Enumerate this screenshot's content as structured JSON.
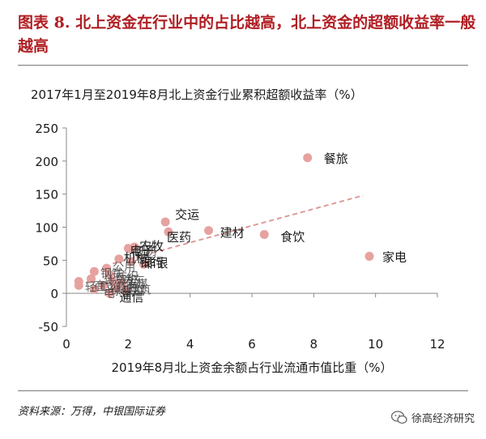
{
  "figure": {
    "title": "图表 8. 北上资金在行业中的占比越高，北上资金的超额收益率一般越高",
    "source": "资料来源：万得，中银国际证券",
    "watermark": "徐高经济研究"
  },
  "colors": {
    "title": "#b01e23",
    "point": "#e6a2a0",
    "trend": "#dc9a97",
    "axis": "#888888"
  },
  "chart_data": {
    "type": "scatter",
    "title": "2017年1月至2019年8月北上资金行业累积超额收益率（%）",
    "xlabel": "2019年8月北上资金余额占行业流通市值比重（%）",
    "ylabel": "",
    "xlim": [
      0,
      12
    ],
    "ylim": [
      -50,
      250
    ],
    "xticks": [
      0,
      2,
      4,
      6,
      8,
      10,
      12
    ],
    "yticks": [
      -50,
      0,
      50,
      100,
      150,
      200,
      250
    ],
    "grid": false,
    "trendline": {
      "x": [
        1.5,
        9.6
      ],
      "y": [
        45,
        148
      ]
    },
    "points": [
      {
        "x": 7.8,
        "y": 205,
        "label": "餐旅"
      },
      {
        "x": 9.8,
        "y": 56,
        "label": "家电"
      },
      {
        "x": 6.4,
        "y": 89,
        "label": "食饮"
      },
      {
        "x": 3.2,
        "y": 108,
        "label": "交运"
      },
      {
        "x": 3.3,
        "y": 93,
        "label": "医药"
      },
      {
        "x": 4.6,
        "y": 95,
        "label": "建材"
      },
      {
        "x": 2.2,
        "y": 70,
        "label": "农牧"
      },
      {
        "x": 2.0,
        "y": 68,
        "label": "电子"
      },
      {
        "x": 1.7,
        "y": 52,
        "label": "机械"
      },
      {
        "x": 2.1,
        "y": 48,
        "label": "银行"
      },
      {
        "x": 2.5,
        "y": 44,
        "label": "非银"
      },
      {
        "x": 1.3,
        "y": 38,
        "label": ""
      },
      {
        "x": 0.9,
        "y": 33,
        "label": ""
      },
      {
        "x": 1.4,
        "y": 28,
        "label": ""
      },
      {
        "x": 0.8,
        "y": 22,
        "label": ""
      },
      {
        "x": 1.5,
        "y": 18,
        "label": ""
      },
      {
        "x": 0.4,
        "y": 18,
        "label": ""
      },
      {
        "x": 1.8,
        "y": 16,
        "label": ""
      },
      {
        "x": 1.2,
        "y": 12,
        "label": ""
      },
      {
        "x": 0.4,
        "y": 12,
        "label": ""
      },
      {
        "x": 1.6,
        "y": 8,
        "label": ""
      },
      {
        "x": 0.9,
        "y": 6,
        "label": ""
      },
      {
        "x": 1.9,
        "y": 4,
        "label": ""
      },
      {
        "x": 1.4,
        "y": 0,
        "label": "通信"
      }
    ],
    "cluster_labels": [
      "公用",
      "化工",
      "钢铁",
      "纺织",
      "计算机",
      "传媒",
      "商贸",
      "建筑",
      "综合",
      "轻工",
      "汽车",
      "有色",
      "电气",
      "采掘",
      "国防"
    ]
  }
}
